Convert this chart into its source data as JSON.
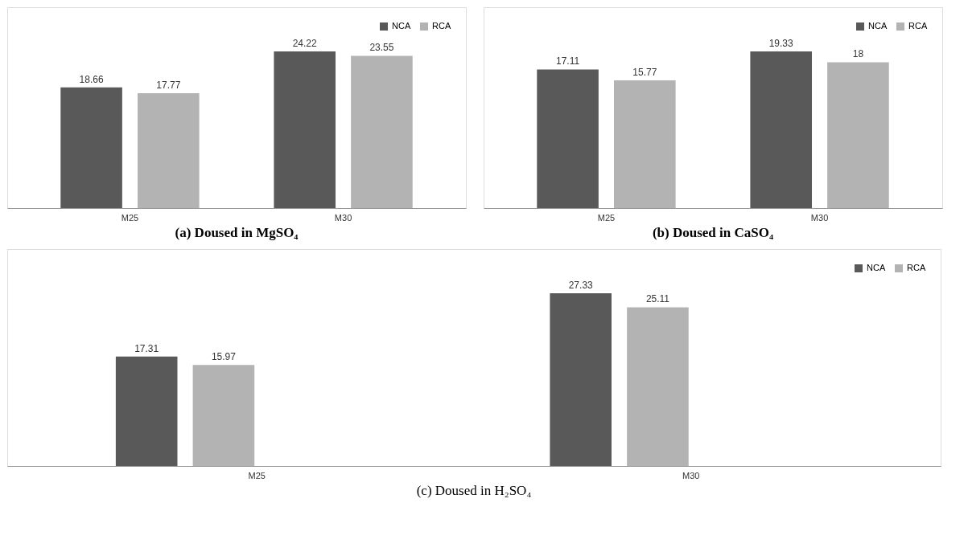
{
  "chart_data": [
    {
      "type": "bar",
      "title": "(a) Doused in MgSO₄",
      "categories": [
        "M25",
        "M30"
      ],
      "legend": "top right",
      "data_labels": true,
      "series": [
        {
          "name": "NCA",
          "color": "#595959",
          "values": [
            18.66,
            24.22
          ]
        },
        {
          "name": "RCA",
          "color": "#b3b3b3",
          "values": [
            17.77,
            23.55
          ]
        }
      ]
    },
    {
      "type": "bar",
      "title": "(b) Doused in CaSO₄",
      "categories": [
        "M25",
        "M30"
      ],
      "legend": "top right",
      "data_labels": true,
      "series": [
        {
          "name": "NCA",
          "color": "#595959",
          "values": [
            17.11,
            19.33
          ]
        },
        {
          "name": "RCA",
          "color": "#b3b3b3",
          "values": [
            15.77,
            18
          ]
        }
      ]
    },
    {
      "type": "bar",
      "title": "(c) Doused in H₂SO₄",
      "categories": [
        "M25",
        "M30"
      ],
      "legend": "top right",
      "data_labels": true,
      "series": [
        {
          "name": "NCA",
          "color": "#595959",
          "values": [
            17.31,
            27.33
          ]
        },
        {
          "name": "RCA",
          "color": "#b3b3b3",
          "values": [
            15.97,
            25.11
          ]
        }
      ]
    }
  ]
}
